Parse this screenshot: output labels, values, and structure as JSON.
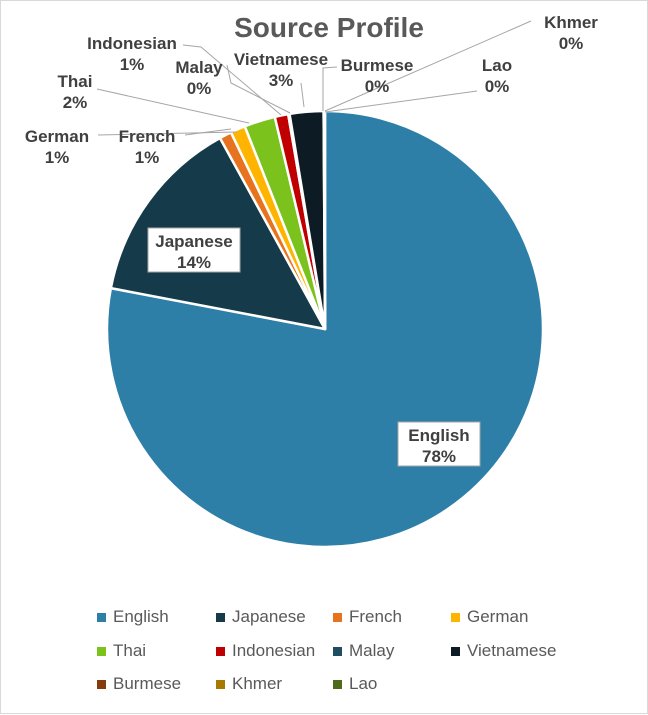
{
  "chart_data": {
    "type": "pie",
    "title": "Source Profile",
    "legend_position": "bottom",
    "slices": [
      {
        "name": "English",
        "value": 78.0,
        "pct_label": "78%",
        "color": "#2E7FA8"
      },
      {
        "name": "Japanese",
        "value": 14.0,
        "pct_label": "14%",
        "color": "#153A4A"
      },
      {
        "name": "French",
        "value": 0.9,
        "pct_label": "1%",
        "color": "#E8731F"
      },
      {
        "name": "German",
        "value": 1.1,
        "pct_label": "1%",
        "color": "#FFB400"
      },
      {
        "name": "Thai",
        "value": 2.3,
        "pct_label": "2%",
        "color": "#7CC21C"
      },
      {
        "name": "Indonesian",
        "value": 1.0,
        "pct_label": "1%",
        "color": "#C00000"
      },
      {
        "name": "Malay",
        "value": 0.1,
        "pct_label": "0%",
        "color": "#1F4E63"
      },
      {
        "name": "Vietnamese",
        "value": 2.5,
        "pct_label": "3%",
        "color": "#0D1C24"
      },
      {
        "name": "Burmese",
        "value": 0.05,
        "pct_label": "0%",
        "color": "#843C0C"
      },
      {
        "name": "Khmer",
        "value": 0.03,
        "pct_label": "0%",
        "color": "#A87900"
      },
      {
        "name": "Lao",
        "value": 0.02,
        "pct_label": "0%",
        "color": "#4E6B1A"
      }
    ]
  }
}
